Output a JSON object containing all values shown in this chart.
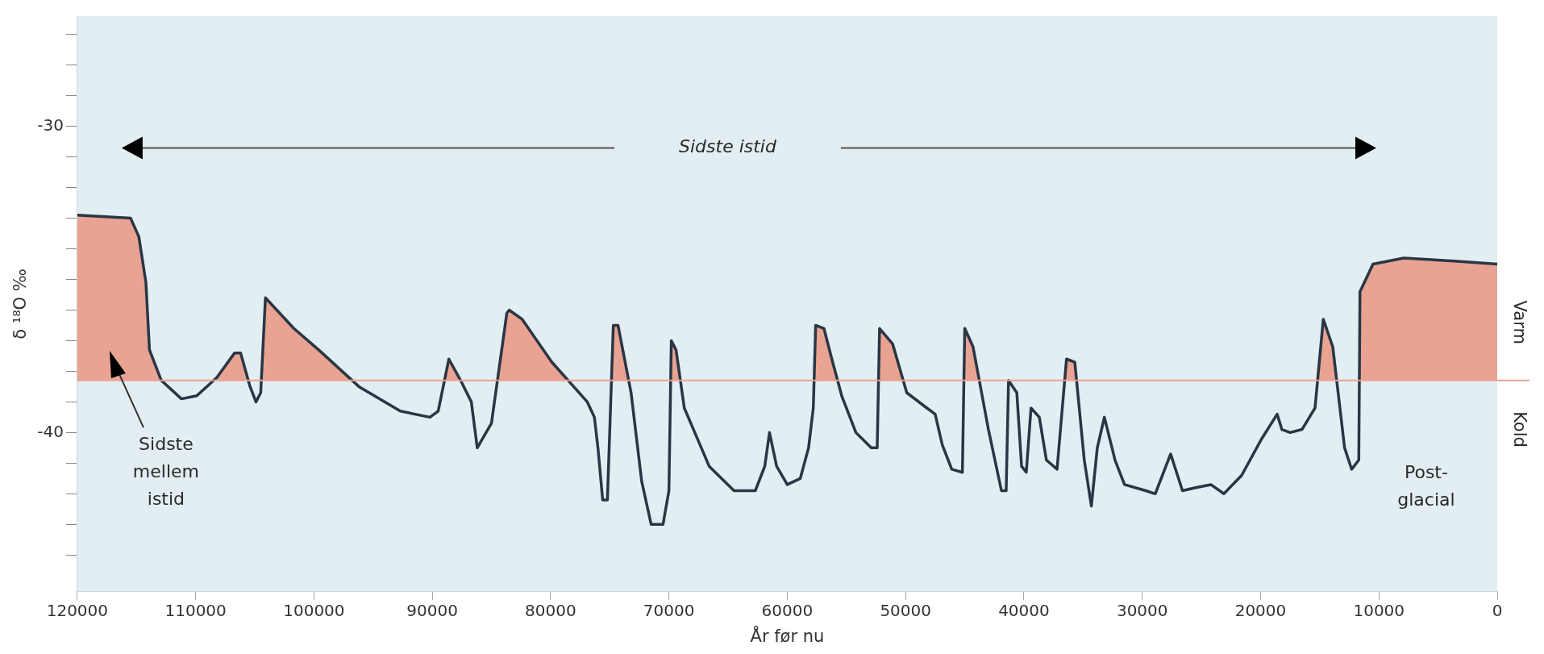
{
  "chart_data": {
    "type": "line",
    "xlabel": "År før nu",
    "ylabel": "δ ¹⁸O ‰",
    "x": [
      120000,
      115500,
      114800,
      114200,
      113900,
      112900,
      111200,
      109900,
      108200,
      106700,
      106200,
      105400,
      104900,
      104500,
      104100,
      101700,
      99600,
      96200,
      92700,
      90200,
      89500,
      88600,
      87600,
      86700,
      86200,
      85000,
      83700,
      83500,
      82400,
      79900,
      76900,
      76300,
      76000,
      75600,
      75200,
      74700,
      74300,
      73900,
      73200,
      72300,
      71500,
      70500,
      70000,
      69800,
      69400,
      68700,
      66600,
      64500,
      62700,
      61900,
      61500,
      60900,
      60000,
      58900,
      58200,
      57800,
      57600,
      56900,
      56300,
      55400,
      54200,
      52900,
      52400,
      52200,
      51100,
      49900,
      48200,
      47500,
      46900,
      46100,
      45200,
      45000,
      44300,
      43000,
      41900,
      41500,
      41300,
      40600,
      40200,
      39800,
      39400,
      38700,
      38100,
      37200,
      36400,
      35700,
      34900,
      34300,
      33800,
      33200,
      32300,
      31500,
      29700,
      28900,
      28000,
      27600,
      26600,
      25500,
      24200,
      23100,
      21600,
      19900,
      18600,
      18200,
      17500,
      16500,
      15400,
      14700,
      13900,
      12900,
      12300,
      11700,
      11600,
      10500,
      7900,
      3600,
      0
    ],
    "series": [
      {
        "color": "#2a3645",
        "values": [
          -32.9,
          -33.0,
          -33.6,
          -35.1,
          -37.3,
          -38.3,
          -38.9,
          -38.8,
          -38.2,
          -37.4,
          -37.4,
          -38.5,
          -39.0,
          -38.7,
          -35.6,
          -36.6,
          -37.3,
          -38.5,
          -39.3,
          -39.5,
          -39.3,
          -37.6,
          -38.3,
          -39.0,
          -40.5,
          -39.7,
          -36.1,
          -36.0,
          -36.3,
          -37.7,
          -39.0,
          -39.5,
          -40.5,
          -42.2,
          -42.2,
          -36.5,
          -36.5,
          -37.3,
          -38.7,
          -41.6,
          -43.0,
          -43.0,
          -41.9,
          -37.0,
          -37.3,
          -39.2,
          -41.1,
          -41.9,
          -41.9,
          -41.1,
          -40.0,
          -41.1,
          -41.7,
          -41.5,
          -40.5,
          -39.2,
          -36.5,
          -36.6,
          -37.5,
          -38.8,
          -40.0,
          -40.5,
          -40.5,
          -36.6,
          -37.1,
          -38.7,
          -39.2,
          -39.4,
          -40.4,
          -41.2,
          -41.3,
          -36.6,
          -37.2,
          -39.9,
          -41.9,
          -41.9,
          -38.3,
          -38.7,
          -41.1,
          -41.3,
          -39.2,
          -39.5,
          -40.9,
          -41.2,
          -37.6,
          -37.7,
          -40.9,
          -42.4,
          -40.5,
          -39.5,
          -40.9,
          -41.7,
          -41.9,
          -42.0,
          -41.1,
          -40.7,
          -41.9,
          -41.8,
          -41.7,
          -42.0,
          -41.4,
          -40.2,
          -39.4,
          -39.9,
          -40.0,
          -39.9,
          -39.2,
          -36.3,
          -37.2,
          -40.5,
          -41.2,
          -40.9,
          -35.4,
          -34.5,
          -34.3,
          -34.4,
          -34.5
        ]
      }
    ],
    "xlim": [
      120000,
      0
    ],
    "xticks": [
      120000,
      110000,
      100000,
      90000,
      80000,
      70000,
      60000,
      50000,
      40000,
      30000,
      20000,
      10000,
      0
    ],
    "ylim": [
      -45.2,
      -26.4
    ],
    "yticks": [
      {
        "value": -27,
        "label": null
      },
      {
        "value": -28,
        "label": null
      },
      {
        "value": -29,
        "label": null
      },
      -30,
      {
        "value": -31,
        "label": null
      },
      {
        "value": -32,
        "label": null
      },
      {
        "value": -33,
        "label": null
      },
      {
        "value": -34,
        "label": null
      },
      {
        "value": -35,
        "label": null
      },
      {
        "value": -36,
        "label": null
      },
      {
        "value": -37,
        "label": null
      },
      {
        "value": -38,
        "label": null
      },
      {
        "value": -39,
        "label": null
      },
      -40,
      {
        "value": -41,
        "label": null
      },
      {
        "value": -42,
        "label": null
      },
      {
        "value": -43,
        "label": null
      },
      {
        "value": -44,
        "label": null
      }
    ],
    "ref_lines": [
      {
        "axis": "y",
        "value": -38.3,
        "color": "#e8a393"
      }
    ],
    "annotations": [
      "Sidste istid",
      "Sidste mellem istid",
      "Post-glacial",
      "Varm",
      "Kold"
    ],
    "grid": false,
    "legend": false,
    "marker": "none",
    "line_style": "solid"
  }
}
